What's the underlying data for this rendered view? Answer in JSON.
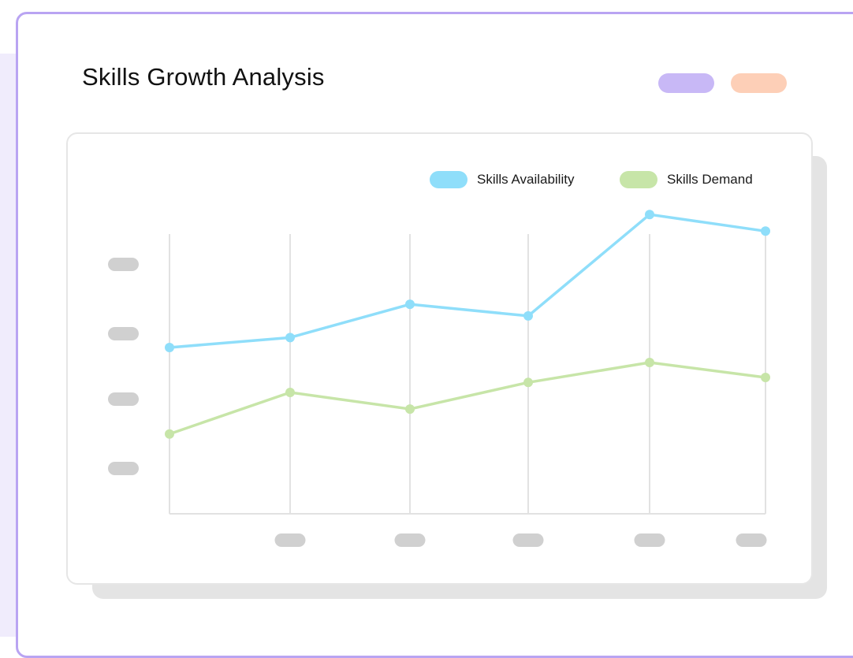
{
  "title": "Skills Growth Analysis",
  "colors": {
    "frame": "#b9a4f2",
    "pill_1": "#c8b8f6",
    "pill_2": "#fdcfb7",
    "availability": "#8fdefa",
    "demand": "#c7e5a8",
    "gridline": "#e2e2e2",
    "tick_placeholder": "#d0d0d0"
  },
  "chart_data": {
    "type": "line",
    "title": "Skills Growth Analysis",
    "xlabel": "",
    "ylabel": "",
    "x": [
      1,
      2,
      3,
      4,
      5,
      6
    ],
    "ylim": [
      0,
      100
    ],
    "grid": "vertical",
    "legend_position": "top-right",
    "series": [
      {
        "name": "Skills Availability",
        "color": "#8fdefa",
        "values": [
          50,
          53,
          63,
          59.5,
          90,
          85
        ]
      },
      {
        "name": "Skills Demand",
        "color": "#c7e5a8",
        "values": [
          24,
          36.5,
          31.5,
          39.5,
          45.5,
          41
        ]
      }
    ]
  }
}
